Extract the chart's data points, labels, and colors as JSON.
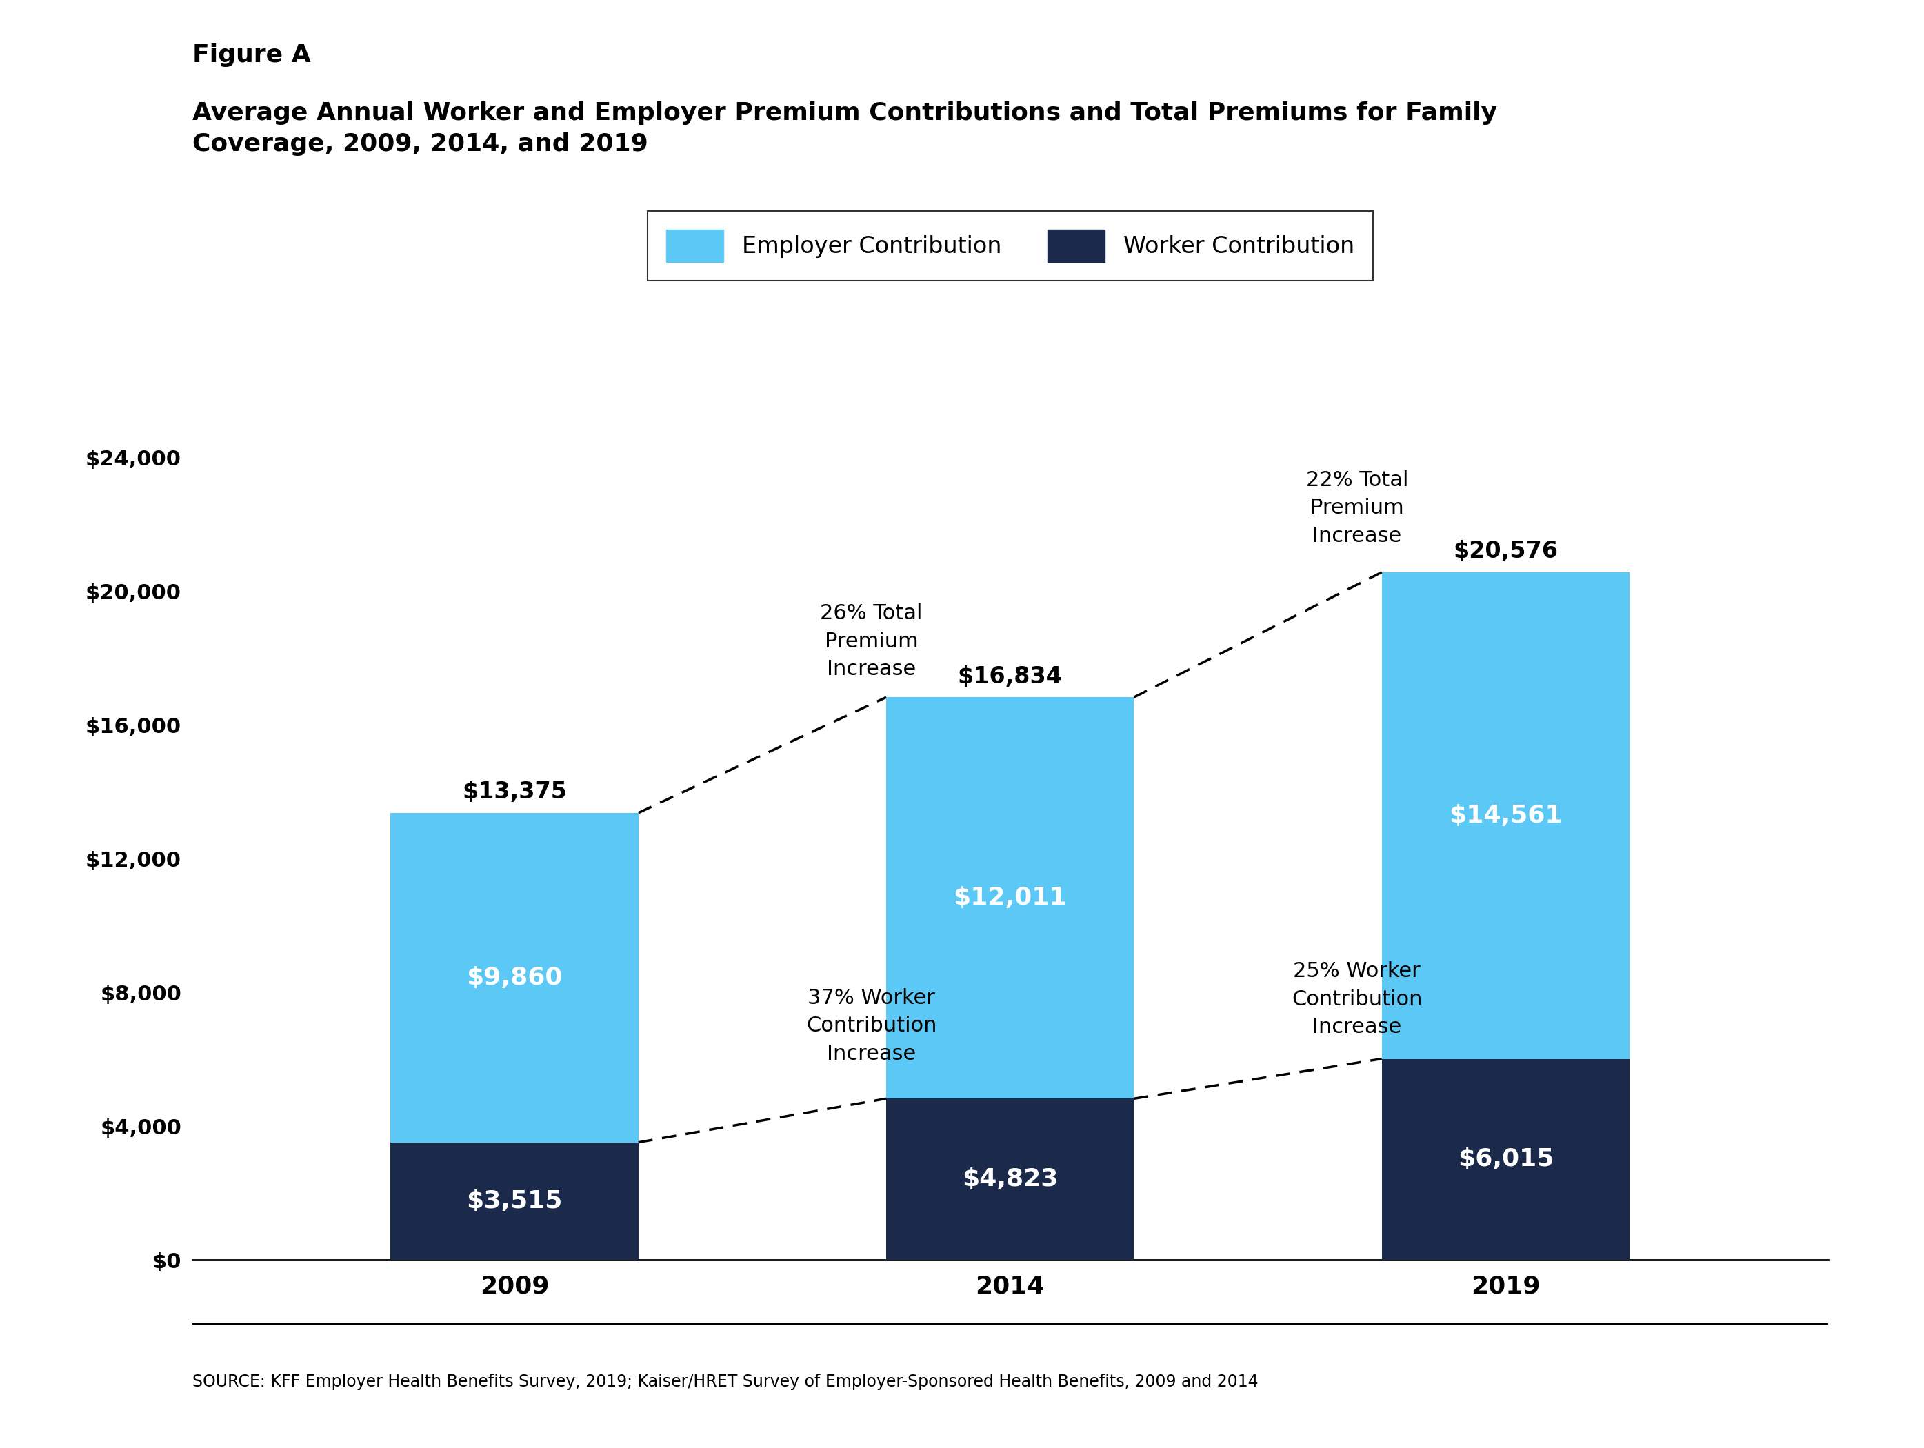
{
  "figure_label": "Figure A",
  "title": "Average Annual Worker and Employer Premium Contributions and Total Premiums for Family\nCoverage, 2009, 2014, and 2019",
  "source": "SOURCE: KFF Employer Health Benefits Survey, 2019; Kaiser/HRET Survey of Employer-Sponsored Health Benefits, 2009 and 2014",
  "years": [
    "2009",
    "2014",
    "2019"
  ],
  "worker_contributions": [
    3515,
    4823,
    6015
  ],
  "employer_contributions": [
    9860,
    12011,
    14561
  ],
  "totals": [
    13375,
    16834,
    20576
  ],
  "worker_labels": [
    "$3,515",
    "$4,823",
    "$6,015"
  ],
  "employer_labels": [
    "$9,860",
    "$12,011",
    "$14,561"
  ],
  "total_labels": [
    "$13,375",
    "$16,834",
    "$20,576"
  ],
  "employer_color": "#5BC8F5",
  "worker_color": "#1B2A4A",
  "annotation_total_pct_1": "26% Total\nPremium\nIncrease",
  "annotation_total_pct_2": "22% Total\nPremium\nIncrease",
  "annotation_worker_pct_1": "37% Worker\nContribution\nIncrease",
  "annotation_worker_pct_2": "25% Worker\nContribution\nIncrease",
  "ylim": [
    0,
    26000
  ],
  "yticks": [
    0,
    4000,
    8000,
    12000,
    16000,
    20000,
    24000
  ],
  "ytick_labels": [
    "$0",
    "$4,000",
    "$8,000",
    "$12,000",
    "$16,000",
    "$20,000",
    "$24,000"
  ],
  "legend_employer": "Employer Contribution",
  "legend_worker": "Worker Contribution",
  "background_color": "#ffffff",
  "bar_width": 0.5
}
